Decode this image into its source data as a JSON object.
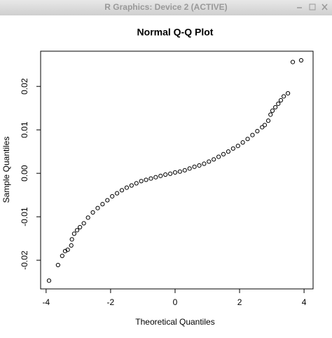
{
  "window": {
    "title": "R Graphics: Device 2 (ACTIVE)"
  },
  "chart_data": {
    "type": "scatter",
    "title": "Normal Q-Q Plot",
    "x_label": "Theoretical Quantiles",
    "y_label": "Sample Quantiles",
    "x": [
      -3.91,
      -3.63,
      -3.5,
      -3.41,
      -3.33,
      -3.22,
      -3.2,
      -3.13,
      -3.04,
      -2.95,
      -2.83,
      -2.7,
      -2.55,
      -2.4,
      -2.25,
      -2.1,
      -1.95,
      -1.8,
      -1.65,
      -1.5,
      -1.35,
      -1.2,
      -1.05,
      -0.9,
      -0.75,
      -0.6,
      -0.45,
      -0.3,
      -0.15,
      0,
      0.15,
      0.3,
      0.45,
      0.6,
      0.75,
      0.9,
      1.05,
      1.2,
      1.35,
      1.5,
      1.65,
      1.8,
      1.95,
      2.1,
      2.25,
      2.4,
      2.55,
      2.7,
      2.78,
      2.89,
      2.96,
      3.02,
      3.11,
      3.2,
      3.28,
      3.37,
      3.5,
      3.65,
      3.91
    ],
    "series": [
      {
        "color": "#000000",
        "values": [
          -0.0247,
          -0.0211,
          -0.019,
          -0.0179,
          -0.0176,
          -0.0166,
          -0.0152,
          -0.0139,
          -0.0131,
          -0.0124,
          -0.0115,
          -0.0102,
          -0.009,
          -0.008,
          -0.0071,
          -0.0062,
          -0.0053,
          -0.0046,
          -0.0039,
          -0.0033,
          -0.0028,
          -0.0023,
          -0.0018,
          -0.0015,
          -0.0012,
          -0.0009,
          -0.0006,
          -0.0003,
          -0.0001,
          0.0002,
          0.0004,
          0.0007,
          0.0011,
          0.0015,
          0.0018,
          0.0022,
          0.0027,
          0.0032,
          0.0038,
          0.0044,
          0.005,
          0.0057,
          0.0063,
          0.0071,
          0.0079,
          0.0088,
          0.0097,
          0.0106,
          0.0111,
          0.0121,
          0.0135,
          0.0144,
          0.0152,
          0.016,
          0.0168,
          0.0177,
          0.0184,
          0.0256,
          0.026
        ]
      }
    ],
    "xlim": [
      -4.17,
      4.28
    ],
    "ylim": [
      -0.0266,
      0.0281
    ],
    "xticks": [
      -4,
      -2,
      0,
      2,
      4
    ],
    "yticks": [
      -0.02,
      -0.01,
      {
        "value": 0,
        "label": "0.00"
      },
      0.01,
      0.02
    ]
  }
}
